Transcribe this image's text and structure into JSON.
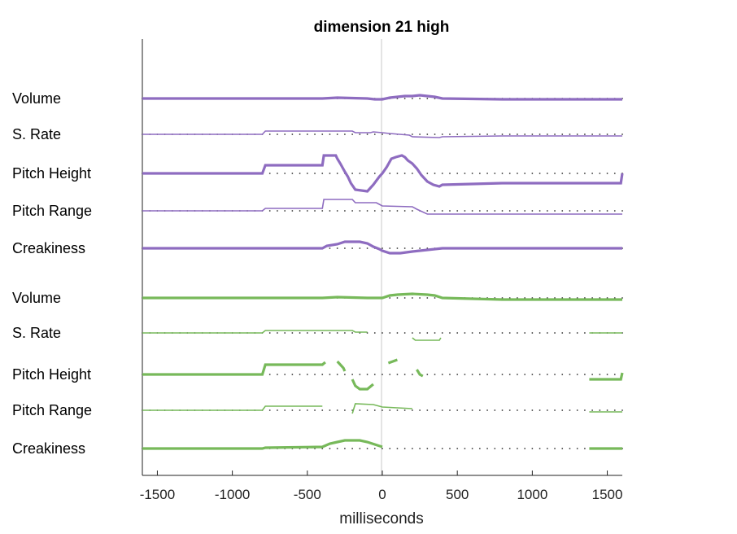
{
  "chart_data": {
    "type": "line",
    "title": "dimension 21 high",
    "xlabel": "milliseconds",
    "ylabel": "",
    "xlim": [
      -1600,
      1600
    ],
    "x_ticks": [
      "-1500",
      "-1000",
      "-500",
      "0",
      "500",
      "1000",
      "1500"
    ],
    "x_tick_values": [
      -1500,
      -1000,
      -500,
      0,
      500,
      1000,
      1500
    ],
    "zero_line": true,
    "grid": false,
    "baseline_dots_step_ms": 50,
    "colors": {
      "purple": "#8e6cc0",
      "green": "#77b95a",
      "zero": "#c8c8c8",
      "axis": "#222222"
    },
    "series": [
      {
        "label": "Volume",
        "group": "purple",
        "thick": true,
        "points": [
          [
            -1600,
            0
          ],
          [
            -400,
            0
          ],
          [
            -300,
            1
          ],
          [
            -100,
            0
          ],
          [
            -50,
            -1
          ],
          [
            0,
            -1
          ],
          [
            50,
            1
          ],
          [
            100,
            2
          ],
          [
            150,
            3
          ],
          [
            200,
            3
          ],
          [
            250,
            4
          ],
          [
            300,
            3
          ],
          [
            350,
            2
          ],
          [
            400,
            0
          ],
          [
            800,
            -1
          ],
          [
            1600,
            -1
          ]
        ]
      },
      {
        "label": "S. Rate",
        "group": "purple",
        "thick": false,
        "points": [
          [
            -1600,
            0
          ],
          [
            -800,
            0
          ],
          [
            -780,
            4
          ],
          [
            -200,
            4
          ],
          [
            -180,
            2
          ],
          [
            -80,
            2
          ],
          [
            -60,
            3
          ],
          [
            0,
            2
          ],
          [
            50,
            1
          ],
          [
            180,
            -1
          ],
          [
            200,
            -3
          ],
          [
            380,
            -4
          ],
          [
            400,
            -3
          ],
          [
            800,
            -2
          ],
          [
            1600,
            -2
          ]
        ]
      },
      {
        "label": "Pitch Height",
        "group": "purple",
        "thick": true,
        "points": [
          [
            -1600,
            0
          ],
          [
            -800,
            0
          ],
          [
            -780,
            10
          ],
          [
            -400,
            10
          ],
          [
            -390,
            22
          ],
          [
            -310,
            22
          ],
          [
            -300,
            18
          ],
          [
            -280,
            12
          ],
          [
            -250,
            2
          ],
          [
            -230,
            -4
          ],
          [
            -210,
            -12
          ],
          [
            -180,
            -20
          ],
          [
            -100,
            -22
          ],
          [
            -60,
            -14
          ],
          [
            -20,
            -4
          ],
          [
            0,
            0
          ],
          [
            30,
            8
          ],
          [
            60,
            18
          ],
          [
            90,
            20
          ],
          [
            130,
            22
          ],
          [
            150,
            20
          ],
          [
            170,
            16
          ],
          [
            200,
            12
          ],
          [
            230,
            6
          ],
          [
            260,
            -2
          ],
          [
            300,
            -10
          ],
          [
            340,
            -14
          ],
          [
            380,
            -16
          ],
          [
            400,
            -14
          ],
          [
            800,
            -12
          ],
          [
            1590,
            -12
          ],
          [
            1600,
            0
          ]
        ]
      },
      {
        "label": "Pitch Range",
        "group": "purple",
        "thick": false,
        "points": [
          [
            -1600,
            0
          ],
          [
            -800,
            0
          ],
          [
            -780,
            3
          ],
          [
            -400,
            3
          ],
          [
            -390,
            14
          ],
          [
            -200,
            14
          ],
          [
            -180,
            10
          ],
          [
            -40,
            10
          ],
          [
            -20,
            8
          ],
          [
            0,
            6
          ],
          [
            200,
            5
          ],
          [
            230,
            2
          ],
          [
            300,
            -4
          ],
          [
            800,
            -4
          ],
          [
            1600,
            -4
          ]
        ]
      },
      {
        "label": "Creakiness",
        "group": "purple",
        "thick": true,
        "points": [
          [
            -1600,
            0
          ],
          [
            -400,
            0
          ],
          [
            -370,
            3
          ],
          [
            -300,
            5
          ],
          [
            -250,
            8
          ],
          [
            -150,
            8
          ],
          [
            -100,
            6
          ],
          [
            -60,
            2
          ],
          [
            -20,
            -1
          ],
          [
            0,
            -3
          ],
          [
            50,
            -6
          ],
          [
            120,
            -6
          ],
          [
            200,
            -4
          ],
          [
            300,
            -2
          ],
          [
            400,
            0
          ],
          [
            1600,
            0
          ]
        ]
      },
      {
        "label": "Volume",
        "group": "green",
        "thick": true,
        "points": [
          [
            -1600,
            0
          ],
          [
            -400,
            0
          ],
          [
            -300,
            1
          ],
          [
            -100,
            0
          ],
          [
            0,
            0
          ],
          [
            50,
            3
          ],
          [
            100,
            4
          ],
          [
            200,
            5
          ],
          [
            300,
            4
          ],
          [
            350,
            3
          ],
          [
            400,
            0
          ],
          [
            800,
            -2
          ],
          [
            1600,
            -2
          ]
        ]
      },
      {
        "label": "S. Rate",
        "group": "green",
        "thick": false,
        "points": [
          [
            -1600,
            0
          ],
          [
            -800,
            0
          ],
          [
            -780,
            3
          ],
          [
            -200,
            3
          ],
          [
            -180,
            1
          ],
          [
            -100,
            1
          ]
        ],
        "points2": [
          [
            200,
            -6
          ],
          [
            220,
            -9
          ],
          [
            380,
            -9
          ],
          [
            390,
            -6
          ]
        ],
        "points3": [
          [
            1380,
            0
          ],
          [
            1600,
            0
          ]
        ]
      },
      {
        "label": "Pitch Height",
        "group": "green",
        "thick": true,
        "points": [
          [
            -1600,
            0
          ],
          [
            -800,
            0
          ],
          [
            -780,
            12
          ],
          [
            -400,
            12
          ],
          [
            -380,
            15
          ]
        ],
        "points2": [
          [
            -300,
            16
          ],
          [
            -280,
            12
          ],
          [
            -260,
            8
          ],
          [
            -250,
            4
          ]
        ],
        "points3": [
          [
            -200,
            -6
          ],
          [
            -180,
            -14
          ],
          [
            -150,
            -18
          ],
          [
            -100,
            -18
          ],
          [
            -60,
            -12
          ]
        ],
        "points4": [
          [
            40,
            14
          ],
          [
            70,
            16
          ],
          [
            100,
            18
          ]
        ],
        "points5": [
          [
            230,
            6
          ],
          [
            250,
            0
          ],
          [
            270,
            -2
          ]
        ],
        "points6": [
          [
            1380,
            -6
          ],
          [
            1590,
            -6
          ],
          [
            1600,
            2
          ]
        ]
      },
      {
        "label": "Pitch Range",
        "group": "green",
        "thick": false,
        "points": [
          [
            -1600,
            0
          ],
          [
            -800,
            0
          ],
          [
            -780,
            5
          ],
          [
            -400,
            5
          ]
        ],
        "points2": [
          [
            -200,
            -4
          ],
          [
            -180,
            8
          ],
          [
            -60,
            7
          ],
          [
            0,
            4
          ],
          [
            200,
            2
          ]
        ],
        "points3": [
          [
            1380,
            -2
          ],
          [
            1600,
            -2
          ]
        ]
      },
      {
        "label": "Creakiness",
        "group": "green",
        "thick": true,
        "points": [
          [
            -1600,
            0
          ],
          [
            -800,
            0
          ],
          [
            -780,
            1
          ],
          [
            -400,
            2
          ],
          [
            -350,
            6
          ],
          [
            -300,
            8
          ],
          [
            -250,
            10
          ],
          [
            -150,
            10
          ],
          [
            -100,
            8
          ],
          [
            -50,
            5
          ],
          [
            0,
            2
          ]
        ],
        "points2": [
          [
            1380,
            0
          ],
          [
            1600,
            0
          ]
        ]
      }
    ]
  }
}
